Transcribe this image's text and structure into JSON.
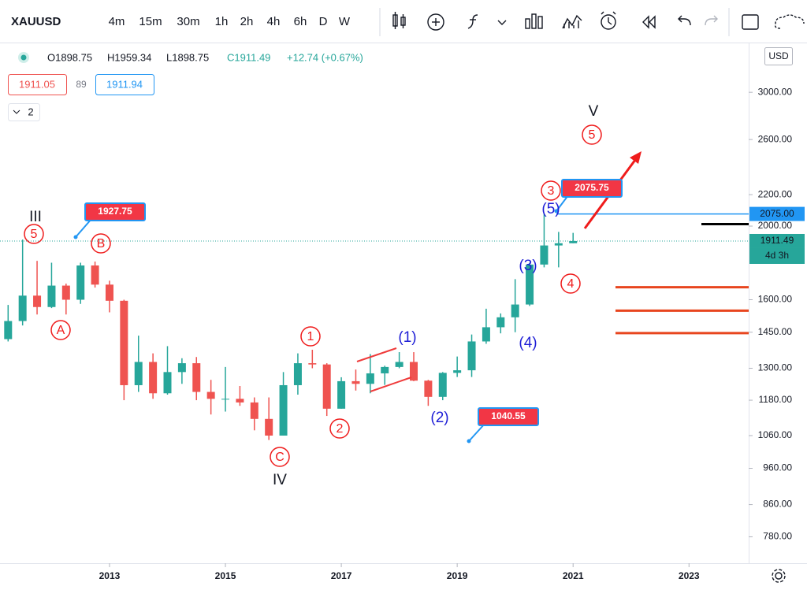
{
  "ui": {
    "symbol": "XAUUSD",
    "intervals": [
      "4m",
      "15m",
      "30m",
      "1h",
      "2h",
      "4h",
      "6h",
      "D",
      "W"
    ],
    "legend": {
      "open": "O1898.75",
      "high": "H1959.34",
      "low": "L1898.75",
      "close": "C1911.49",
      "change": "+12.74 (+0.67%)"
    },
    "sell": "1911.05",
    "spread": "89",
    "buy": "1911.94",
    "indicators": "2",
    "currency": "USD"
  },
  "chart_data": {
    "type": "candlestick",
    "x": [
      2011.25,
      2011.5,
      2011.75,
      2012.0,
      2012.25,
      2012.5,
      2012.75,
      2013.0,
      2013.25,
      2013.5,
      2013.75,
      2014.0,
      2014.25,
      2014.5,
      2014.75,
      2015.0,
      2015.25,
      2015.5,
      2015.75,
      2016.0,
      2016.25,
      2016.5,
      2016.75,
      2017.0,
      2017.25,
      2017.5,
      2017.75,
      2018.0,
      2018.25,
      2018.5,
      2018.75,
      2019.0,
      2019.25,
      2019.5,
      2019.75,
      2020.0,
      2020.25,
      2020.5,
      2020.75,
      2021.0
    ],
    "open": [
      1420,
      1500,
      1620,
      1565,
      1670,
      1600,
      1775,
      1675,
      1595,
      1235,
      1325,
      1205,
      1285,
      1320,
      1210,
      1185,
      1185,
      1172,
      1115,
      1060,
      1235,
      1320,
      1315,
      1150,
      1250,
      1240,
      1280,
      1305,
      1325,
      1252,
      1192,
      1282,
      1292,
      1410,
      1472,
      1517,
      1577,
      1780,
      1886,
      1898.75
    ],
    "high": [
      1575,
      1920,
      1800,
      1790,
      1680,
      1790,
      1796,
      1695,
      1600,
      1435,
      1360,
      1390,
      1340,
      1345,
      1255,
      1305,
      1232,
      1190,
      1190,
      1285,
      1360,
      1375,
      1320,
      1265,
      1295,
      1357,
      1310,
      1365,
      1365,
      1255,
      1285,
      1347,
      1440,
      1557,
      1535,
      1703,
      1790,
      2075,
      1965,
      1959.34
    ],
    "low": [
      1410,
      1480,
      1530,
      1560,
      1530,
      1580,
      1660,
      1540,
      1180,
      1210,
      1185,
      1200,
      1240,
      1180,
      1130,
      1140,
      1160,
      1077,
      1046,
      1060,
      1200,
      1300,
      1125,
      1150,
      1215,
      1205,
      1236,
      1300,
      1250,
      1160,
      1180,
      1266,
      1266,
      1400,
      1445,
      1450,
      1570,
      1765,
      1765,
      1898.75
    ],
    "close": [
      1500,
      1620,
      1565,
      1670,
      1600,
      1775,
      1675,
      1595,
      1235,
      1325,
      1205,
      1285,
      1320,
      1210,
      1185,
      1185,
      1172,
      1115,
      1060,
      1235,
      1320,
      1315,
      1150,
      1250,
      1240,
      1280,
      1305,
      1325,
      1252,
      1192,
      1282,
      1292,
      1410,
      1472,
      1517,
      1577,
      1780,
      1886,
      1898.75,
      1911.49
    ],
    "up_color": "#26a69a",
    "down_color": "#ef5350",
    "xlim": [
      2011.11,
      2024.03
    ],
    "xticks": [
      2013,
      2015,
      2017,
      2019,
      2021,
      2023
    ],
    "ylim": [
      720,
      3480
    ],
    "log_scale": true,
    "yticks": [
      {
        "value": 3000,
        "label": "3000.00"
      },
      {
        "value": 2600,
        "label": "2600.00"
      },
      {
        "value": 2200,
        "label": "2200.00"
      },
      {
        "value": 2000,
        "label": "2000.00"
      },
      {
        "value": 1600,
        "label": "1600.00"
      },
      {
        "value": 1450,
        "label": "1450.00"
      },
      {
        "value": 1300,
        "label": "1300.00"
      },
      {
        "value": 1180,
        "label": "1180.00"
      },
      {
        "value": 1060,
        "label": "1060.00"
      },
      {
        "value": 960,
        "label": "960.00"
      },
      {
        "value": 860,
        "label": "860.00"
      },
      {
        "value": 780,
        "label": "780.00"
      }
    ],
    "price_lines": [
      {
        "value": 2075,
        "label": "2075.00",
        "color": "#2196f3"
      },
      {
        "value": 1911.49,
        "label": "1911.49",
        "color": "#26a69a"
      }
    ],
    "countdown": "4d 3h",
    "levels": [
      {
        "value": 2012,
        "color": "#000000"
      },
      {
        "value": 1662,
        "color": "#e8451e"
      },
      {
        "value": 1548,
        "color": "#e8451e"
      },
      {
        "value": 1446,
        "color": "#e8451e"
      }
    ],
    "callouts": [
      {
        "value": 1927.75,
        "label": "1927.75"
      },
      {
        "value": 2075.75,
        "label": "2075.75"
      },
      {
        "value": 1040.55,
        "label": "1040.55"
      }
    ],
    "annotations": [
      "III",
      "5",
      "B",
      "A",
      "1",
      "2",
      "C",
      "IV",
      "(1)",
      "(2)",
      "(3)",
      "(4)",
      "(5)",
      "3",
      "4",
      "5",
      "V"
    ]
  }
}
